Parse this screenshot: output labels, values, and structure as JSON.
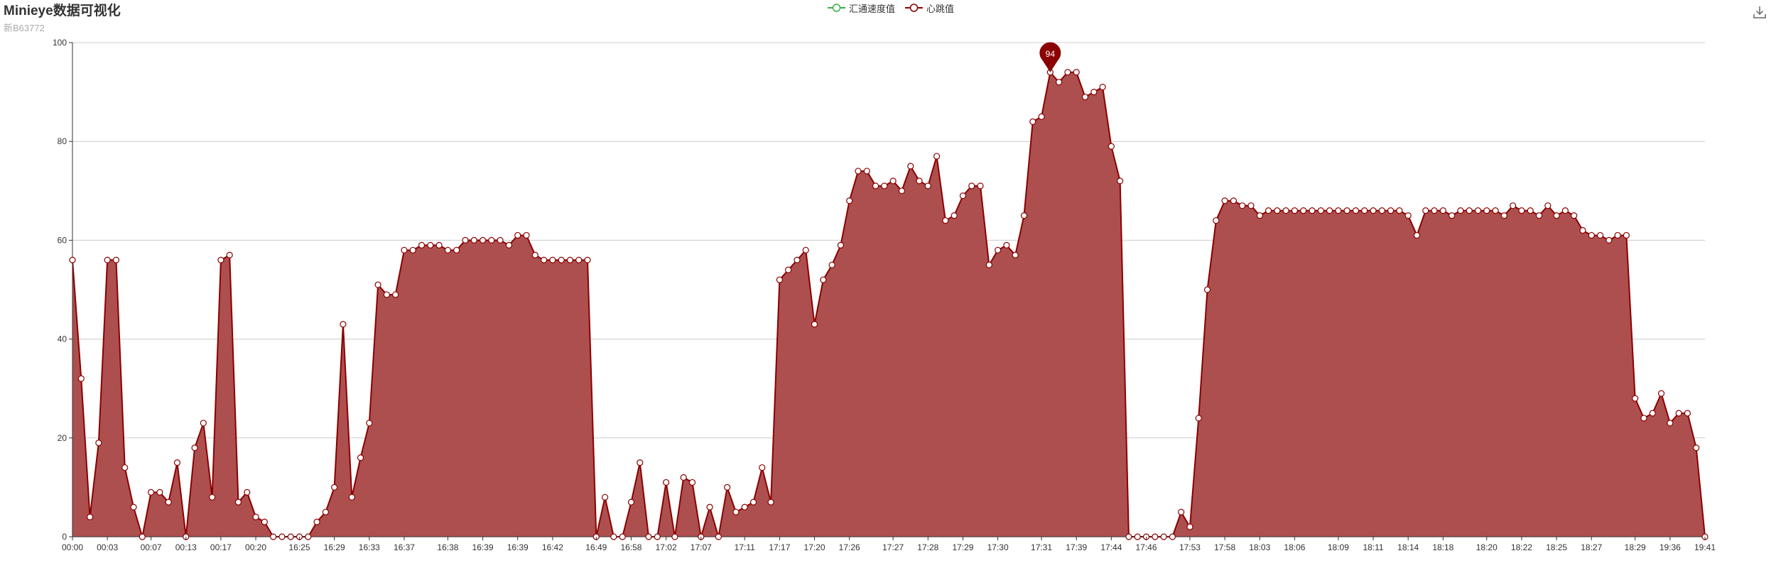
{
  "title": "Minieye数据可视化",
  "subtitle": "新B63772",
  "colors": {
    "series_a": "#3cb04a",
    "series_b": "#8b0000",
    "area_fill": "#ad4f4f",
    "grid": "#cccccc",
    "axis": "#333333"
  },
  "toolbox": {
    "icon": "download-icon"
  },
  "chart_data": {
    "type": "area",
    "xlabel": "",
    "ylabel": "",
    "ylim": [
      0,
      100
    ],
    "yticks": [
      0,
      20,
      40,
      60,
      80,
      100
    ],
    "grid": "horizontal",
    "legend_position": "top-center",
    "x_tick_labels": [
      "00:00",
      "00:03",
      "00:07",
      "00:13",
      "00:17",
      "00:20",
      "16:25",
      "16:29",
      "16:33",
      "16:37",
      "16:38",
      "16:39",
      "16:39",
      "16:42",
      "16:49",
      "16:58",
      "17:02",
      "17:07",
      "17:11",
      "17:17",
      "17:20",
      "17:26",
      "17:27",
      "17:28",
      "17:29",
      "17:30",
      "17:31",
      "17:39",
      "17:44",
      "17:46",
      "17:53",
      "17:58",
      "18:03",
      "18:06",
      "18:09",
      "18:11",
      "18:14",
      "18:18",
      "18:20",
      "18:22",
      "18:25",
      "18:27",
      "18:29",
      "19:36",
      "19:41"
    ],
    "max_marker": {
      "label": "94",
      "value": 94
    },
    "series": [
      {
        "name": "汇通速度值",
        "values": []
      },
      {
        "name": "心跳值",
        "values": [
          56,
          32,
          4,
          19,
          56,
          56,
          14,
          6,
          0,
          9,
          9,
          7,
          15,
          0,
          18,
          23,
          8,
          56,
          57,
          7,
          9,
          4,
          3,
          0,
          0,
          0,
          0,
          0,
          3,
          5,
          10,
          43,
          8,
          16,
          23,
          51,
          49,
          49,
          58,
          58,
          59,
          59,
          59,
          58,
          58,
          60,
          60,
          60,
          60,
          60,
          59,
          61,
          61,
          57,
          56,
          56,
          56,
          56,
          56,
          56,
          0,
          8,
          0,
          0,
          7,
          15,
          0,
          0,
          11,
          0,
          12,
          11,
          0,
          6,
          0,
          10,
          5,
          6,
          7,
          14,
          7,
          52,
          54,
          56,
          58,
          43,
          52,
          55,
          59,
          68,
          74,
          74,
          71,
          71,
          72,
          70,
          75,
          72,
          71,
          77,
          64,
          65,
          69,
          71,
          71,
          55,
          58,
          59,
          57,
          65,
          84,
          85,
          94,
          92,
          94,
          94,
          89,
          90,
          91,
          79,
          72,
          0,
          0,
          0,
          0,
          0,
          0,
          5,
          2,
          24,
          50,
          64,
          68,
          68,
          67,
          67,
          65,
          66,
          66,
          66,
          66,
          66,
          66,
          66,
          66,
          66,
          66,
          66,
          66,
          66,
          66,
          66,
          66,
          65,
          61,
          66,
          66,
          66,
          65,
          66,
          66,
          66,
          66,
          66,
          65,
          67,
          66,
          66,
          65,
          67,
          65,
          66,
          65,
          62,
          61,
          61,
          60,
          61,
          61,
          28,
          24,
          25,
          29,
          23,
          25,
          25,
          18,
          0
        ]
      }
    ]
  }
}
